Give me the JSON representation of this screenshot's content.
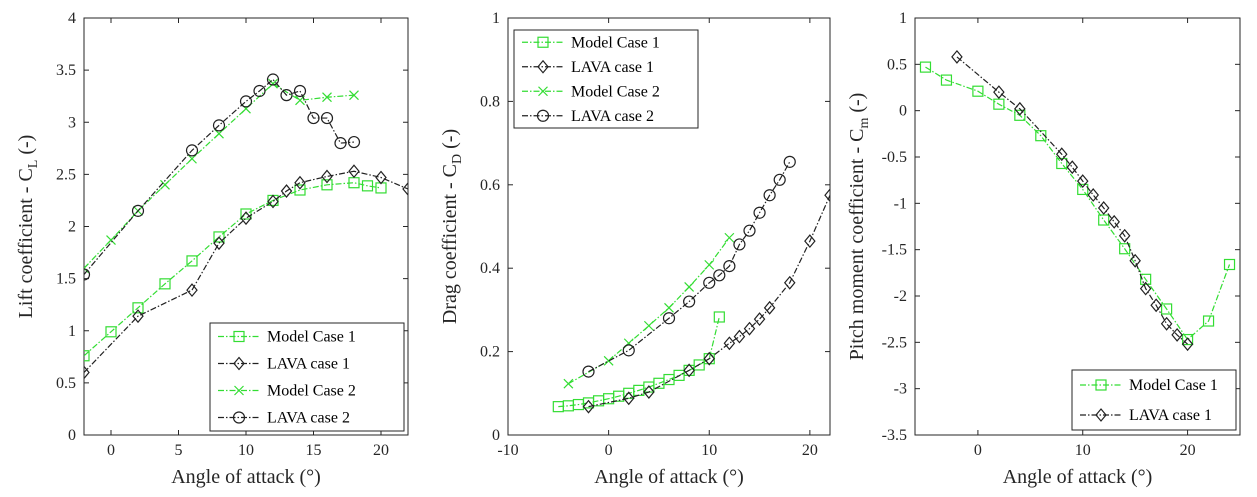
{
  "chart_data": [
    {
      "type": "line",
      "xlabel": "Angle of attack (°)",
      "ylabel": "Lift coefficient - C",
      "ylabel_sub": "L",
      "ylabel_tail": " (-)",
      "xlim": [
        -2,
        22
      ],
      "ylim": [
        0,
        4
      ],
      "xticks": [
        0,
        5,
        10,
        15,
        20
      ],
      "yticks": [
        0,
        0.5,
        1,
        1.5,
        2,
        2.5,
        3,
        3.5,
        4
      ],
      "xtick_labels": [
        "0",
        "5",
        "10",
        "15",
        "20"
      ],
      "ytick_labels": [
        "0",
        "0.5",
        "1",
        "1.5",
        "2",
        "2.5",
        "3",
        "3.5",
        "4"
      ],
      "grid": false,
      "legend_position": "bottom-right",
      "series": [
        {
          "name": "Model Case 1",
          "color": "#33dd33",
          "marker": "square",
          "x": [
            -2,
            0,
            2,
            4,
            6,
            8,
            10,
            12,
            14,
            16,
            18,
            19,
            20
          ],
          "y": [
            0.76,
            0.99,
            1.22,
            1.45,
            1.67,
            1.9,
            2.12,
            2.25,
            2.35,
            2.4,
            2.42,
            2.39,
            2.37
          ]
        },
        {
          "name": "LAVA case 1",
          "color": "#222222",
          "marker": "diamond",
          "x": [
            -2,
            2,
            6,
            8,
            10,
            12,
            13,
            14,
            16,
            18,
            20,
            22
          ],
          "y": [
            0.6,
            1.14,
            1.39,
            1.84,
            2.08,
            2.24,
            2.34,
            2.42,
            2.48,
            2.53,
            2.47,
            2.36
          ]
        },
        {
          "name": "Model Case 2",
          "color": "#33dd33",
          "marker": "x",
          "x": [
            -2,
            0,
            2,
            4,
            6,
            8,
            10,
            12,
            14,
            16,
            18
          ],
          "y": [
            1.6,
            1.87,
            2.15,
            2.4,
            2.65,
            2.89,
            3.13,
            3.37,
            3.21,
            3.24,
            3.26
          ]
        },
        {
          "name": "LAVA case 2",
          "color": "#222222",
          "marker": "circle",
          "x": [
            -2,
            2,
            6,
            8,
            10,
            11,
            12,
            13,
            14,
            15,
            16,
            17,
            18
          ],
          "y": [
            1.54,
            2.15,
            2.73,
            2.97,
            3.2,
            3.3,
            3.41,
            3.26,
            3.3,
            3.04,
            3.04,
            2.8,
            2.81
          ]
        }
      ]
    },
    {
      "type": "line",
      "xlabel": "Angle of attack (°)",
      "ylabel": "Drag coefficient - C",
      "ylabel_sub": "D",
      "ylabel_tail": " (-)",
      "xlim": [
        -10,
        22
      ],
      "ylim": [
        0,
        1
      ],
      "xticks": [
        -10,
        0,
        10,
        20
      ],
      "yticks": [
        0,
        0.2,
        0.4,
        0.6,
        0.8,
        1
      ],
      "xtick_labels": [
        "-10",
        "0",
        "10",
        "20"
      ],
      "ytick_labels": [
        "0",
        "0.2",
        "0.4",
        "0.6",
        "0.8",
        "1"
      ],
      "grid": false,
      "legend_position": "top-left",
      "series": [
        {
          "name": "Model Case 1",
          "color": "#33dd33",
          "marker": "square",
          "x": [
            -5,
            -4,
            -3,
            -2,
            -1,
            0,
            1,
            2,
            3,
            4,
            5,
            6,
            7,
            8,
            9,
            10,
            11
          ],
          "y": [
            0.068,
            0.07,
            0.073,
            0.077,
            0.082,
            0.087,
            0.093,
            0.1,
            0.107,
            0.115,
            0.124,
            0.133,
            0.143,
            0.155,
            0.168,
            0.183,
            0.283
          ]
        },
        {
          "name": "LAVA case 1",
          "color": "#222222",
          "marker": "diamond",
          "x": [
            -2,
            2,
            4,
            8,
            10,
            12,
            13,
            14,
            15,
            16,
            18,
            20,
            22
          ],
          "y": [
            0.068,
            0.088,
            0.103,
            0.155,
            0.183,
            0.22,
            0.236,
            0.255,
            0.278,
            0.305,
            0.365,
            0.465,
            0.575
          ]
        },
        {
          "name": "Model Case 2",
          "color": "#33dd33",
          "marker": "x",
          "x": [
            -4,
            0,
            2,
            4,
            6,
            8,
            10,
            12
          ],
          "y": [
            0.123,
            0.178,
            0.22,
            0.262,
            0.305,
            0.355,
            0.408,
            0.473
          ]
        },
        {
          "name": "LAVA case 2",
          "color": "#222222",
          "marker": "circle",
          "x": [
            -2,
            2,
            6,
            8,
            10,
            11,
            12,
            13,
            14,
            15,
            16,
            17,
            18
          ],
          "y": [
            0.152,
            0.203,
            0.28,
            0.32,
            0.365,
            0.383,
            0.405,
            0.457,
            0.49,
            0.533,
            0.575,
            0.612,
            0.655
          ]
        }
      ]
    },
    {
      "type": "line",
      "xlabel": "Angle of attack (°)",
      "ylabel": "Pitch moment coefficient - C",
      "ylabel_sub": "m",
      "ylabel_tail": " (-)",
      "xlim": [
        -6,
        25
      ],
      "ylim": [
        -3.5,
        1
      ],
      "xticks": [
        0,
        10,
        20
      ],
      "yticks": [
        -3.5,
        -3,
        -2.5,
        -2,
        -1.5,
        -1,
        -0.5,
        0,
        0.5,
        1
      ],
      "xtick_labels": [
        "0",
        "10",
        "20"
      ],
      "ytick_labels": [
        "-3.5",
        "-3",
        "-2.5",
        "-2",
        "-1.5",
        "-1",
        "-0.5",
        "0",
        "0.5",
        "1"
      ],
      "grid": false,
      "legend_position": "bottom-right",
      "series": [
        {
          "name": "Model Case 1",
          "color": "#33dd33",
          "marker": "square",
          "x": [
            -5,
            -3,
            0,
            2,
            4,
            6,
            8,
            10,
            12,
            14,
            16,
            18,
            20,
            22,
            24
          ],
          "y": [
            0.47,
            0.33,
            0.21,
            0.07,
            -0.05,
            -0.27,
            -0.57,
            -0.85,
            -1.18,
            -1.49,
            -1.82,
            -2.14,
            -2.47,
            -2.27,
            -1.66
          ]
        },
        {
          "name": "LAVA case 1",
          "color": "#222222",
          "marker": "diamond",
          "x": [
            -2,
            2,
            4,
            8,
            9,
            10,
            11,
            12,
            13,
            14,
            15,
            16,
            17,
            18,
            19,
            20
          ],
          "y": [
            0.58,
            0.2,
            0.02,
            -0.47,
            -0.61,
            -0.76,
            -0.91,
            -1.05,
            -1.2,
            -1.35,
            -1.62,
            -1.92,
            -2.1,
            -2.3,
            -2.42,
            -2.52
          ]
        }
      ]
    }
  ]
}
